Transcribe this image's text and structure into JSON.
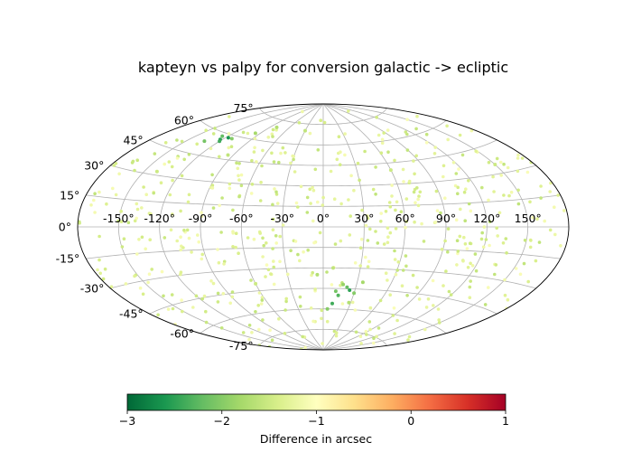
{
  "chart_data": {
    "type": "scatter",
    "projection": "aitoff",
    "title": "kapteyn vs palpy for conversion galactic -> ecliptic",
    "xlabel": "",
    "ylabel": "",
    "grid": true,
    "x_ticks": [
      "-150°",
      "-120°",
      "-90°",
      "-60°",
      "-30°",
      "0°",
      "30°",
      "60°",
      "90°",
      "120°",
      "150°"
    ],
    "x_tick_values": [
      -150,
      -120,
      -90,
      -60,
      -30,
      0,
      30,
      60,
      90,
      120,
      150
    ],
    "y_ticks": [
      "-75°",
      "-60°",
      "-45°",
      "-30°",
      "-15°",
      "0°",
      "15°",
      "30°",
      "45°",
      "60°",
      "75°"
    ],
    "y_tick_values": [
      -75,
      -60,
      -45,
      -30,
      -15,
      0,
      15,
      30,
      45,
      60,
      75
    ],
    "colorbar": {
      "label": "Difference in arcsec",
      "range": [
        -3,
        1
      ],
      "ticks": [
        "−3",
        "−2",
        "−1",
        "0",
        "1"
      ],
      "tick_values": [
        -3,
        -2,
        -1,
        0,
        1
      ],
      "colormap": "RdYlGn_r"
    },
    "points": [
      {
        "lon": -126,
        "lat": 58,
        "value": -2.2
      },
      {
        "lon": -122,
        "lat": 56,
        "value": -2.5
      },
      {
        "lon": -120,
        "lat": 55,
        "value": -2.4
      },
      {
        "lon": -117,
        "lat": 58,
        "value": -2.6
      },
      {
        "lon": -112,
        "lat": 58,
        "value": -2.0
      },
      {
        "lon": -134,
        "lat": 53,
        "value": -2.1
      },
      {
        "lon": -96,
        "lat": 64,
        "value": -1.8
      },
      {
        "lon": -80,
        "lat": 70,
        "value": -1.7
      },
      {
        "lon": -95,
        "lat": 48,
        "value": -1.6
      },
      {
        "lon": -140,
        "lat": 32,
        "value": -1.5
      },
      {
        "lon": 12,
        "lat": -47,
        "value": -2.1
      },
      {
        "lon": 15,
        "lat": -50,
        "value": -2.3
      },
      {
        "lon": 22,
        "lat": -44,
        "value": -2.2
      },
      {
        "lon": 25,
        "lat": -46,
        "value": -2.5
      },
      {
        "lon": 30,
        "lat": -48,
        "value": -2.0
      },
      {
        "lon": 18,
        "lat": -42,
        "value": -1.9
      },
      {
        "lon": 10,
        "lat": -56,
        "value": -2.4
      },
      {
        "lon": 5,
        "lat": -60,
        "value": -2.0
      },
      {
        "lon": 35,
        "lat": -40,
        "value": -1.8
      },
      {
        "lon": 28,
        "lat": -55,
        "value": -1.7
      },
      {
        "lon": -5,
        "lat": -35,
        "value": -1.7
      },
      {
        "lon": 8,
        "lat": -30,
        "value": -1.6
      },
      {
        "lon": -30,
        "lat": 70,
        "value": -1.6
      },
      {
        "lon": 60,
        "lat": 40,
        "value": -1.5
      },
      {
        "lon": -60,
        "lat": -40,
        "value": -1.5
      },
      {
        "lon": 150,
        "lat": 35,
        "value": -1.5
      }
    ],
    "n_background_points": 560,
    "background_value_range": [
      -1.6,
      -1.05
    ]
  }
}
